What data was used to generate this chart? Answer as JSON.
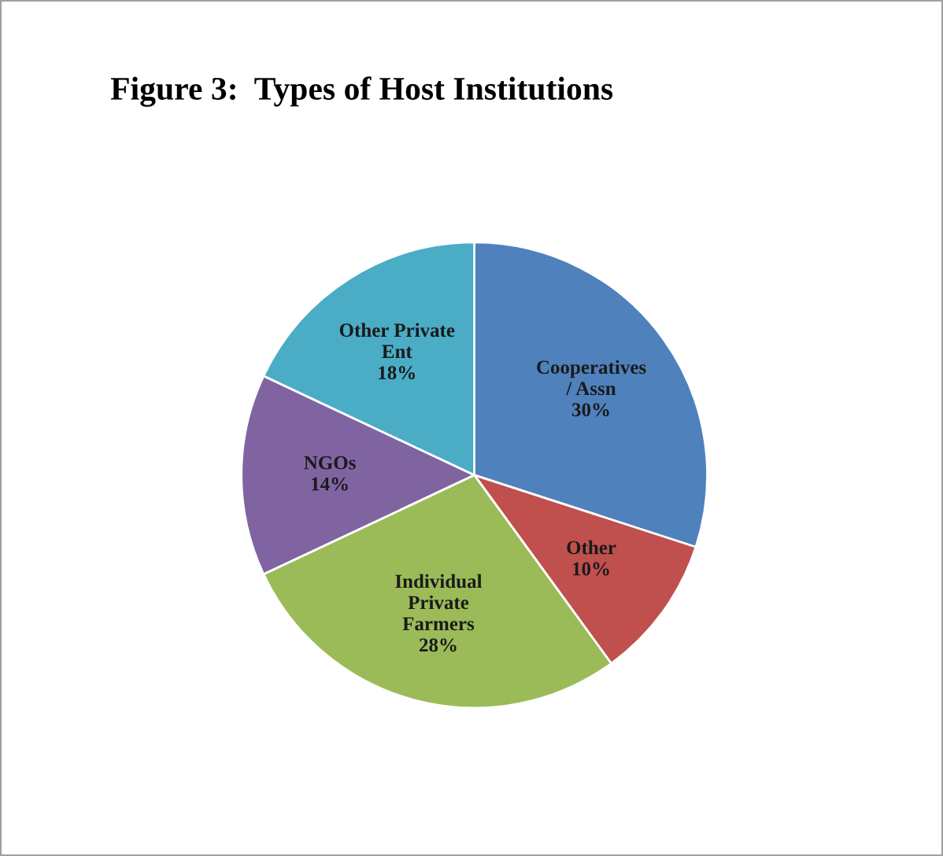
{
  "chart_data": {
    "type": "pie",
    "title": "Figure 3:  Types of Host Institutions",
    "categories": [
      "Cooperatives\n/ Assn",
      "Other",
      "Individual\nPrivate\nFarmers",
      "NGOs",
      "Other Private\nEnt"
    ],
    "values": [
      30,
      10,
      28,
      14,
      18
    ],
    "colors": [
      "#4f81bd",
      "#c0504d",
      "#9bbb59",
      "#8064a2",
      "#4bacc6"
    ],
    "value_labels": [
      "30%",
      "10%",
      "28%",
      "14%",
      "18%"
    ],
    "legend": false
  }
}
